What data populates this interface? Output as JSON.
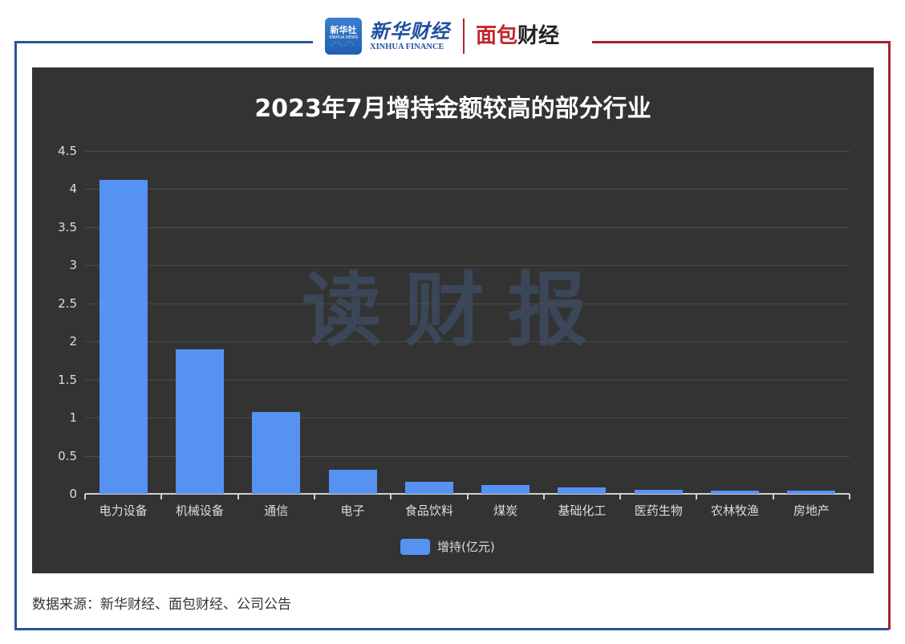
{
  "header": {
    "xinhua_badge": {
      "line1": "新华社",
      "line2": "XINHUA NEWS"
    },
    "xinhua_finance": {
      "cn": "新华财经",
      "en": "XINHUA FINANCE"
    },
    "mianbao": {
      "part1": "面包",
      "part2": "财经",
      "reg": "®"
    },
    "colors": {
      "left_border": "#2a5593",
      "right_border": "#a8202a"
    }
  },
  "chart": {
    "title": "2023年7月增持金额较高的部分行业",
    "watermark": "读财报",
    "y_ticks": [
      "0",
      "0.5",
      "1",
      "1.5",
      "2",
      "2.5",
      "3",
      "3.5",
      "4",
      "4.5"
    ],
    "categories": [
      "电力设备",
      "机械设备",
      "通信",
      "电子",
      "食品饮料",
      "煤炭",
      "基础化工",
      "医药生物",
      "农林牧渔",
      "房地产"
    ],
    "legend": "增持(亿元)",
    "bar_color": "#5592f2",
    "background": "#333333"
  },
  "chart_data": {
    "type": "bar",
    "title": "2023年7月增持金额较高的部分行业",
    "categories": [
      "电力设备",
      "机械设备",
      "通信",
      "电子",
      "食品饮料",
      "煤炭",
      "基础化工",
      "医药生物",
      "农林牧渔",
      "房地产"
    ],
    "series": [
      {
        "name": "增持(亿元)",
        "values": [
          4.12,
          1.9,
          1.07,
          0.32,
          0.16,
          0.12,
          0.08,
          0.05,
          0.04,
          0.04
        ]
      }
    ],
    "xlabel": "",
    "ylabel": "",
    "ylim": [
      0,
      4.5
    ],
    "yticks": [
      0,
      0.5,
      1,
      1.5,
      2,
      2.5,
      3,
      3.5,
      4,
      4.5
    ],
    "grid": true,
    "legend_position": "bottom"
  },
  "footer": {
    "source": "数据来源：新华财经、面包财经、公司公告"
  }
}
